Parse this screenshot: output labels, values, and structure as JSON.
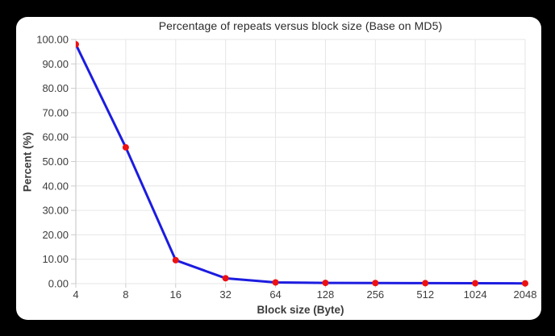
{
  "window": {
    "background_color": "#000000",
    "card_background_color": "#ffffff"
  },
  "chart_data": {
    "type": "line",
    "title": "Percentage of repeats versus block size (Base on MD5)",
    "xlabel": "Block size (Byte)",
    "ylabel": "Percent (%)",
    "x_scale": "categorical-log2",
    "categories": [
      "4",
      "8",
      "16",
      "32",
      "64",
      "128",
      "256",
      "512",
      "1024",
      "2048"
    ],
    "values": [
      98.0,
      55.8,
      9.6,
      2.2,
      0.5,
      0.3,
      0.25,
      0.2,
      0.15,
      0.1
    ],
    "ylim": [
      0,
      100
    ],
    "y_tick_labels": [
      "0.00",
      "10.00",
      "20.00",
      "30.00",
      "40.00",
      "50.00",
      "60.00",
      "70.00",
      "80.00",
      "90.00",
      "100.00"
    ],
    "grid": true,
    "legend": "none",
    "line_color": "#1c1ce0",
    "point_color": "#ee1111",
    "grid_color": "#e6e6e6",
    "axis_color": "#cccccc",
    "tick_text_color": "#3c3c3c",
    "title_color": "#2b2b2b"
  }
}
